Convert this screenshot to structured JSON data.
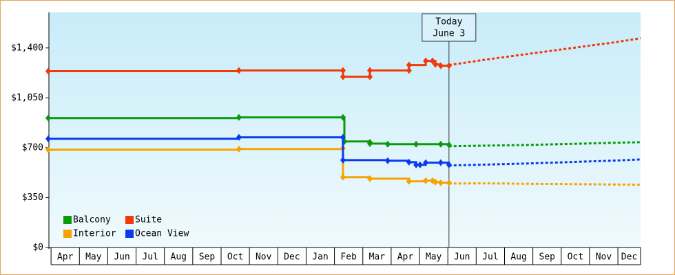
{
  "chart_data": {
    "type": "step-line",
    "categories": [
      "Apr",
      "May",
      "Jun",
      "Jul",
      "Aug",
      "Sep",
      "Oct",
      "Nov",
      "Dec",
      "Jan",
      "Feb",
      "Mar",
      "Apr",
      "May",
      "Jun",
      "Jul",
      "Aug",
      "Sep",
      "Oct",
      "Nov",
      "Dec"
    ],
    "xlim": [
      0,
      20.9
    ],
    "xticks": [
      0.1,
      1.1,
      2.1,
      3.1,
      4.1,
      5.1,
      6.1,
      7.1,
      8.1,
      9.1,
      10.1,
      11.1,
      12.1,
      13.1,
      14.1,
      15.1,
      16.1,
      17.1,
      18.1,
      19.1,
      20.1
    ],
    "ylim": [
      0,
      1640
    ],
    "yticks": [
      {
        "value": 0,
        "label": "$0"
      },
      {
        "value": 350,
        "label": "$350"
      },
      {
        "value": 700,
        "label": "$700"
      },
      {
        "value": 1050,
        "label": "$1,050"
      },
      {
        "value": 1400,
        "label": "$1,400"
      }
    ],
    "legend": "lower left",
    "annotation": {
      "lines": [
        "Today",
        "June 3"
      ],
      "x": 14.14
    },
    "series": [
      {
        "name": "Balcony",
        "color": "#0a9a0a",
        "x": [
          0,
          6.73,
          10.4,
          10.45,
          11.35,
          11.35,
          11.98,
          12.98,
          13.85,
          14.14
        ],
        "values": [
          908,
          913,
          913,
          744,
          738,
          729,
          725,
          725,
          725,
          720
        ],
        "forecast": {
          "x": [
            14.14,
            15.5,
            17,
            18.5,
            20,
            20.9
          ],
          "values": [
            710,
            715,
            720,
            727,
            735,
            739
          ]
        }
      },
      {
        "name": "Suite",
        "color": "#f03a0a",
        "x": [
          0,
          6.73,
          10.4,
          10.4,
          11.35,
          11.35,
          12.73,
          12.73,
          13.32,
          13.56,
          13.66,
          13.85,
          14.14
        ],
        "values": [
          1237,
          1242,
          1242,
          1198,
          1198,
          1242,
          1242,
          1280,
          1309,
          1309,
          1285,
          1275,
          1275
        ],
        "forecast": {
          "x": [
            14.14,
            15.5,
            17,
            18.5,
            20,
            20.9
          ],
          "values": [
            1280,
            1320,
            1360,
            1400,
            1440,
            1468
          ]
        }
      },
      {
        "name": "Interior",
        "color": "#f5a300",
        "x": [
          0,
          6.73,
          10.4,
          10.4,
          11.35,
          12.73,
          13.32,
          13.56,
          13.66,
          13.85,
          14.14
        ],
        "values": [
          686,
          691,
          696,
          493,
          483,
          464,
          469,
          469,
          459,
          454,
          454
        ],
        "forecast": {
          "x": [
            14.14,
            15.5,
            17,
            18.5,
            20,
            20.9
          ],
          "values": [
            449,
            450,
            447,
            445,
            442,
            440
          ]
        }
      },
      {
        "name": "Ocean View",
        "color": "#0a3af0",
        "x": [
          0,
          6.73,
          10.4,
          10.4,
          11.98,
          12.73,
          12.98,
          13.12,
          13.32,
          13.85,
          14.14
        ],
        "values": [
          763,
          773,
          773,
          613,
          609,
          599,
          580,
          580,
          595,
          595,
          580
        ],
        "forecast": {
          "x": [
            14.14,
            15.5,
            17,
            18.5,
            20,
            20.9
          ],
          "values": [
            575,
            582,
            590,
            600,
            610,
            618
          ]
        }
      }
    ]
  }
}
